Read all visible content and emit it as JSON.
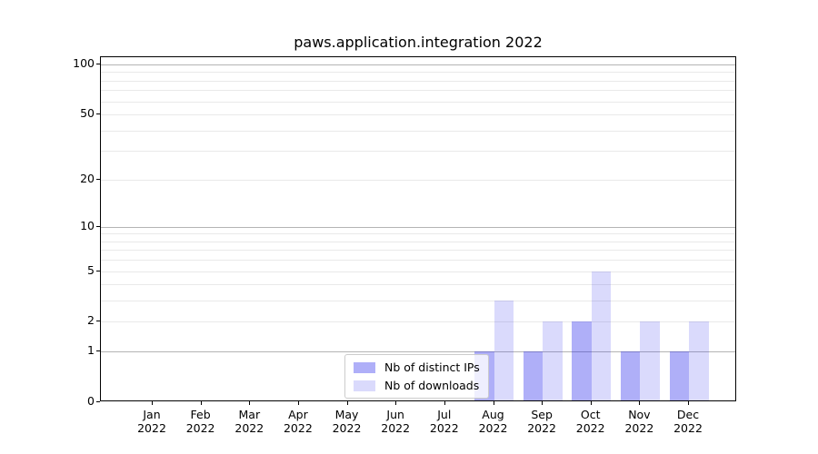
{
  "chart_data": {
    "type": "bar",
    "title": "paws.application.integration 2022",
    "categories": [
      "Jan 2022",
      "Feb 2022",
      "Mar 2022",
      "Apr 2022",
      "May 2022",
      "Jun 2022",
      "Jul 2022",
      "Aug 2022",
      "Sep 2022",
      "Oct 2022",
      "Nov 2022",
      "Dec 2022"
    ],
    "series": [
      {
        "name": "Nb of distinct IPs",
        "color": "rgba(25,25,235,0.35)",
        "values": [
          0,
          0,
          0,
          0,
          0,
          0,
          0,
          1,
          1,
          2,
          1,
          1
        ]
      },
      {
        "name": "Nb of downloads",
        "color": "rgba(25,25,235,0.16)",
        "values": [
          0,
          0,
          0,
          0,
          0,
          0,
          0,
          3,
          2,
          5,
          2,
          2
        ]
      }
    ],
    "xlabel": "",
    "ylabel": "",
    "yscale": "log1p",
    "ylim": [
      0,
      111
    ],
    "yticks": [
      0,
      1,
      2,
      5,
      10,
      20,
      50,
      100
    ],
    "major_gridlines": [
      1,
      10,
      100
    ],
    "minor_gridlines": [
      2,
      3,
      4,
      5,
      6,
      7,
      8,
      9,
      20,
      30,
      40,
      50,
      60,
      70,
      80,
      90
    ],
    "grid": "on",
    "legend_position": "lower-center-inside"
  },
  "colors": {
    "grid_major": "#b4b4b4",
    "grid_minor": "#e9e9e9",
    "spine": "#000000",
    "legend_border": "#cccccc"
  }
}
